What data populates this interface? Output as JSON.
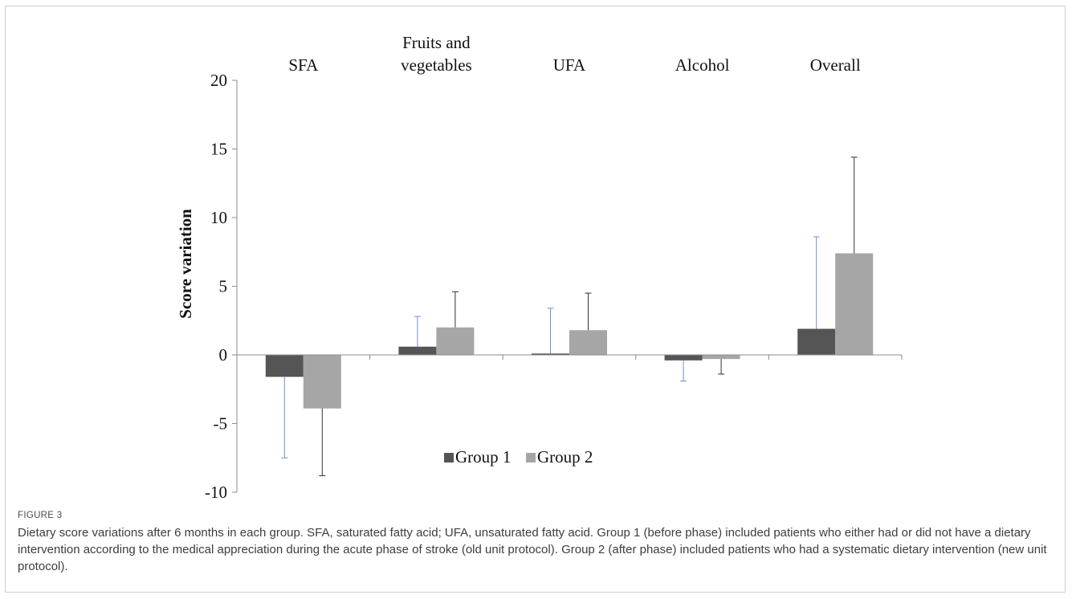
{
  "chart_data": {
    "type": "bar",
    "categories": [
      "SFA",
      "Fruits and vegetables",
      "UFA",
      "Alcohol",
      "Overall"
    ],
    "category_label_lines": [
      [
        "SFA"
      ],
      [
        "Fruits and",
        "vegetables"
      ],
      [
        "UFA"
      ],
      [
        "Alcohol"
      ],
      [
        "Overall"
      ]
    ],
    "series": [
      {
        "name": "Group 1",
        "values": [
          -1.6,
          0.6,
          0.1,
          -0.4,
          1.9
        ],
        "error": [
          5.9,
          2.2,
          3.3,
          1.5,
          6.7
        ],
        "color": "#555555",
        "error_color": "#6f8fd0",
        "error_direction": "away"
      },
      {
        "name": "Group 2",
        "values": [
          -3.9,
          2.0,
          1.8,
          -0.3,
          7.4
        ],
        "error": [
          4.9,
          2.6,
          2.7,
          1.1,
          7.0
        ],
        "color": "#a6a6a6",
        "error_color": "#333333",
        "error_direction": "away"
      }
    ],
    "xlabel": "",
    "ylabel": "Score variation",
    "ylim": [
      -10,
      20
    ],
    "yticks": [
      -10,
      -5,
      0,
      5,
      10,
      15,
      20
    ],
    "ytick_labels": [
      "-10",
      "-5",
      "0",
      "5",
      "10",
      "15",
      "20"
    ],
    "category_labels_position": "top",
    "grid": false,
    "legend_position": "bottom-center"
  },
  "caption": {
    "label": "FIGURE 3",
    "text": "Dietary score variations after 6 months in each group. SFA, saturated fatty acid; UFA, unsaturated fatty acid. Group 1 (before phase) included patients who either had or did not have a dietary intervention according to the medical appreciation during the acute phase of stroke (old unit protocol). Group 2 (after phase) included patients who had a systematic dietary intervention (new unit protocol)."
  }
}
